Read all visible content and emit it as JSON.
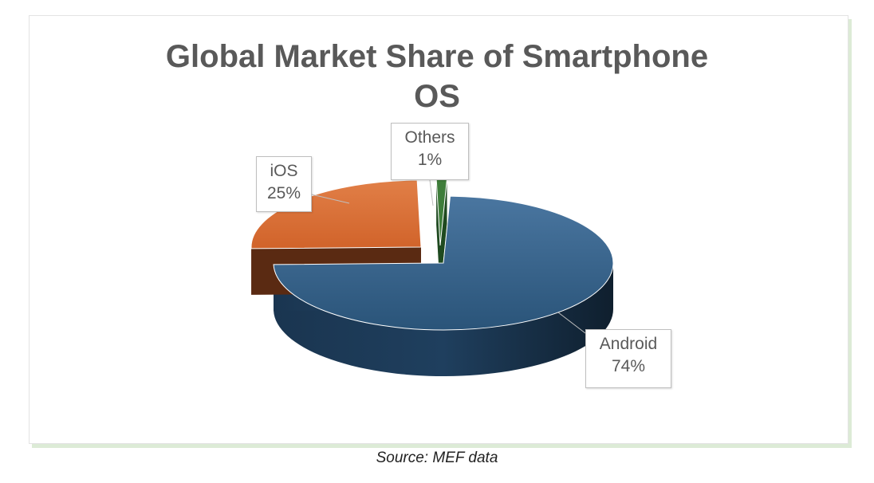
{
  "chart_data": {
    "type": "pie",
    "title_lines": [
      "Global Market Share of Smartphone",
      "OS"
    ],
    "slices": [
      {
        "label": "Android",
        "value": 74,
        "percent_label": "74%",
        "color": "#2f5a80"
      },
      {
        "label": "iOS",
        "value": 25,
        "percent_label": "25%",
        "color": "#d7692f"
      },
      {
        "label": "Others",
        "value": 1,
        "percent_label": "1%",
        "color": "#3e7d3a"
      }
    ],
    "style": "3d-exploded",
    "legend": "none"
  },
  "source_text": "Source: MEF data"
}
